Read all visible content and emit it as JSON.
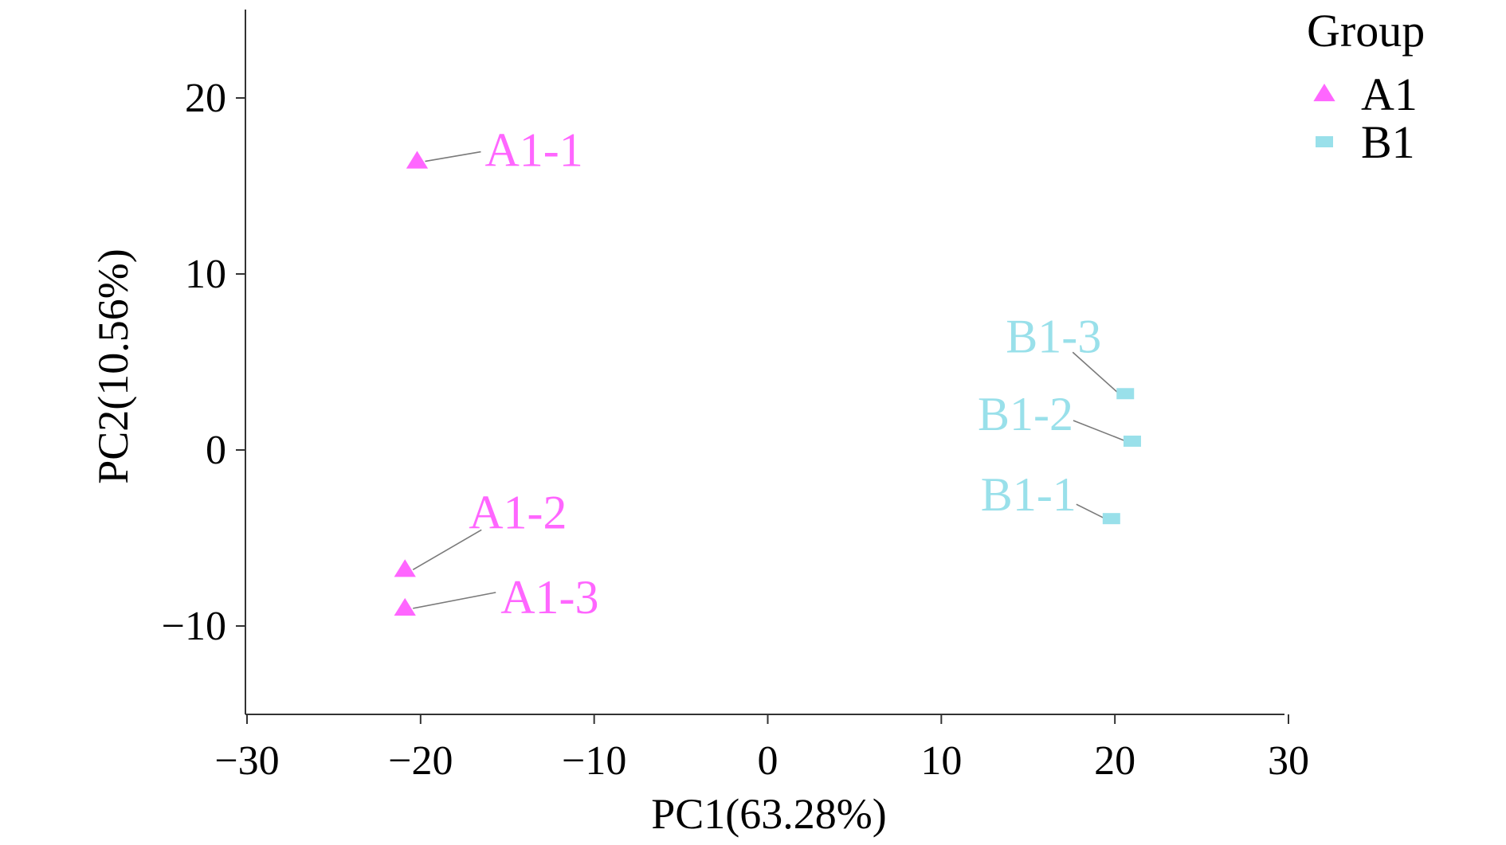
{
  "chart_data": {
    "type": "scatter",
    "xlabel": "PC1(63.28%)",
    "ylabel": "PC2(10.56%)",
    "xlim": [
      -30,
      30
    ],
    "ylim": [
      -15,
      25
    ],
    "x_ticks": [
      -30,
      -20,
      -10,
      0,
      10,
      20,
      30
    ],
    "y_ticks": [
      -10,
      0,
      10,
      20
    ],
    "x_tick_labels": [
      "−30",
      "−20",
      "−10",
      "0",
      "10",
      "20",
      "30"
    ],
    "y_tick_labels": [
      "−10",
      "0",
      "10",
      "20"
    ],
    "grid": false,
    "legend": {
      "title": "Group",
      "position": "top-right",
      "entries": [
        {
          "name": "A1",
          "shape": "triangle",
          "color": "#ff66ff"
        },
        {
          "name": "B1",
          "shape": "square",
          "color": "#99e0ea"
        }
      ]
    },
    "series": [
      {
        "name": "A1",
        "shape": "triangle",
        "color": "#ff66ff",
        "points": [
          {
            "label": "A1-1",
            "x": -20.2,
            "y": 16.4
          },
          {
            "label": "A1-2",
            "x": -20.9,
            "y": -6.8
          },
          {
            "label": "A1-3",
            "x": -20.9,
            "y": -9.0
          }
        ]
      },
      {
        "name": "B1",
        "shape": "square",
        "color": "#99e0ea",
        "points": [
          {
            "label": "B1-1",
            "x": 19.8,
            "y": -3.9
          },
          {
            "label": "B1-2",
            "x": 21.0,
            "y": 0.5
          },
          {
            "label": "B1-3",
            "x": 20.6,
            "y": 3.2
          }
        ]
      }
    ]
  }
}
